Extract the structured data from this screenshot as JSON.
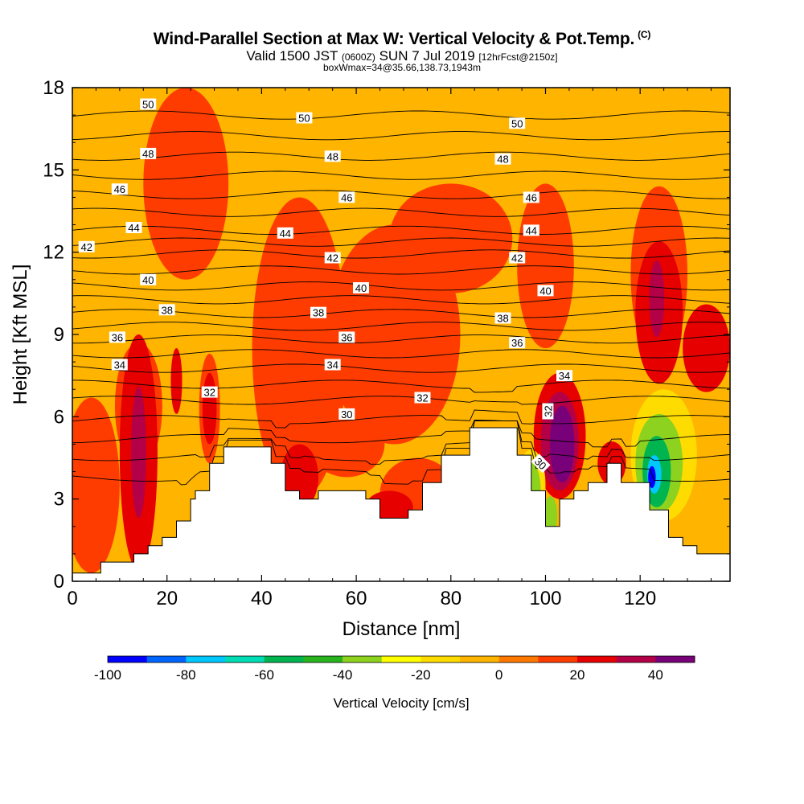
{
  "title": {
    "main": "Wind-Parallel Section at Max W: Vertical Velocity & Pot.Temp.",
    "copyright": "(C)",
    "valid_prefix": "Valid 1500 JST",
    "valid_utc": "(0600Z)",
    "valid_date": "SUN 7 Jul 2019",
    "forecast": "[12hrFcst@2150z]",
    "box": "boxWmax=34@35.66,138.73,1943m"
  },
  "colors": {
    "background_field": "#ffb400",
    "terrain": "#ffffff",
    "isentrope": "#000000"
  },
  "chart_data": {
    "type": "heatmap",
    "xlabel": "Distance [nm]",
    "ylabel": "Height [Kft MSL]",
    "xlim": [
      0,
      139
    ],
    "ylim": [
      0,
      18
    ],
    "xticks": [
      0,
      20,
      40,
      60,
      80,
      100,
      120
    ],
    "yticks": [
      0,
      3,
      6,
      9,
      12,
      15,
      18
    ],
    "colorbar": {
      "label": "Vertical Velocity [cm/s]",
      "range": [
        -100,
        50
      ],
      "step": 10,
      "tick_values": [
        -100,
        -80,
        -60,
        -40,
        -20,
        0,
        20,
        40
      ],
      "tick_labels": [
        "-100",
        "-80",
        "-60",
        "-40",
        "-20",
        "0",
        "20",
        "40"
      ],
      "colors": [
        "#0000ff",
        "#0064ff",
        "#00c8ff",
        "#00dcb4",
        "#00b450",
        "#28b41e",
        "#8cd21e",
        "#ffff00",
        "#ffdc00",
        "#ffb400",
        "#ff7800",
        "#ff3c00",
        "#e60000",
        "#b40046",
        "#780078"
      ]
    },
    "terrain_profile": {
      "x": [
        0,
        6,
        6,
        12,
        12,
        13,
        13,
        16,
        16,
        19,
        19,
        22,
        22,
        25,
        25,
        26,
        26,
        29,
        29,
        32,
        32,
        42,
        42,
        45,
        45,
        48,
        48,
        52,
        52,
        62,
        62,
        65,
        65,
        71,
        71,
        74,
        74,
        78,
        78,
        84,
        84,
        94,
        94,
        97,
        97,
        100,
        100,
        103,
        103,
        106,
        106,
        109,
        109,
        113,
        113,
        116,
        116,
        122,
        122,
        126,
        126,
        129,
        129,
        132,
        132,
        135,
        135,
        139
      ],
      "y": [
        0.3,
        0.3,
        0.7,
        0.7,
        0.7,
        0.7,
        1.0,
        1.0,
        1.3,
        1.3,
        1.6,
        1.6,
        2.2,
        2.2,
        3.0,
        3.0,
        3.3,
        3.3,
        4.3,
        4.3,
        4.9,
        4.9,
        4.3,
        4.3,
        3.3,
        3.3,
        3.0,
        3.0,
        3.3,
        3.3,
        3.0,
        3.0,
        2.3,
        2.3,
        2.6,
        2.6,
        3.6,
        3.6,
        4.6,
        4.6,
        5.6,
        5.6,
        4.6,
        4.6,
        3.3,
        3.3,
        2.0,
        2.0,
        3.0,
        3.0,
        3.3,
        3.3,
        3.6,
        3.6,
        4.3,
        4.3,
        3.6,
        3.6,
        2.6,
        2.6,
        1.6,
        1.6,
        1.3,
        1.3,
        1.0,
        1.0,
        1.0,
        1.0
      ]
    },
    "velocity_cells": [
      {
        "x": 14,
        "y": 6.4,
        "rx": 5,
        "ry": 2.3,
        "w": 10
      },
      {
        "x": 14,
        "y": 4.7,
        "rx": 4,
        "ry": 4.3,
        "w": 20
      },
      {
        "x": 14,
        "y": 4.7,
        "rx": 1.6,
        "ry": 2.4,
        "w": 30
      },
      {
        "x": 4,
        "y": 3.5,
        "rx": 6,
        "ry": 3.2,
        "w": 10
      },
      {
        "x": 29,
        "y": 6.3,
        "rx": 2.2,
        "ry": 2.0,
        "w": 10
      },
      {
        "x": 29,
        "y": 6.3,
        "rx": 1.5,
        "ry": 1.3,
        "w": 20
      },
      {
        "x": 22,
        "y": 7.3,
        "rx": 1.2,
        "ry": 1.2,
        "w": 20
      },
      {
        "x": 24,
        "y": 14.5,
        "rx": 9,
        "ry": 3.5,
        "w": 10
      },
      {
        "x": 48,
        "y": 8.5,
        "rx": 10,
        "ry": 5.5,
        "w": 10
      },
      {
        "x": 68,
        "y": 9.0,
        "rx": 14,
        "ry": 4.0,
        "w": 10
      },
      {
        "x": 80,
        "y": 12.5,
        "rx": 13,
        "ry": 2.0,
        "w": 10
      },
      {
        "x": 58,
        "y": 5.0,
        "rx": 8,
        "ry": 1.2,
        "w": 10
      },
      {
        "x": 73,
        "y": 3.2,
        "rx": 8,
        "ry": 1.3,
        "w": 10
      },
      {
        "x": 67,
        "y": 2.7,
        "rx": 5,
        "ry": 0.6,
        "w": 20
      },
      {
        "x": 48,
        "y": 3.8,
        "rx": 4,
        "ry": 1.2,
        "w": 20
      },
      {
        "x": 100,
        "y": 11.5,
        "rx": 6,
        "ry": 3.0,
        "w": 10
      },
      {
        "x": 103,
        "y": 5.3,
        "rx": 5.5,
        "ry": 2.3,
        "w": 20
      },
      {
        "x": 103,
        "y": 5.1,
        "rx": 4.0,
        "ry": 1.8,
        "w": 30
      },
      {
        "x": 103.5,
        "y": 5.0,
        "rx": 2.6,
        "ry": 1.4,
        "w": 40
      },
      {
        "x": 104,
        "y": 4.9,
        "rx": 1.4,
        "ry": 1.0,
        "w": 50
      },
      {
        "x": 114,
        "y": 4.3,
        "rx": 3.0,
        "ry": 0.8,
        "w": 20
      },
      {
        "x": 124,
        "y": 11.2,
        "rx": 6,
        "ry": 3.2,
        "w": 10
      },
      {
        "x": 124,
        "y": 9.8,
        "rx": 5,
        "ry": 2.6,
        "w": 20
      },
      {
        "x": 123.5,
        "y": 10.3,
        "rx": 1.6,
        "ry": 1.4,
        "w": 30
      },
      {
        "x": 134,
        "y": 8.5,
        "rx": 5,
        "ry": 1.6,
        "w": 20
      },
      {
        "x": 97,
        "y": 3.5,
        "rx": 3.0,
        "ry": 1.3,
        "w": -20
      },
      {
        "x": 97,
        "y": 3.3,
        "rx": 2.0,
        "ry": 1.0,
        "w": -40
      },
      {
        "x": 101,
        "y": 2.4,
        "rx": 1.5,
        "ry": 0.7,
        "w": -40
      },
      {
        "x": 125,
        "y": 4.6,
        "rx": 7,
        "ry": 2.4,
        "w": -20
      },
      {
        "x": 124,
        "y": 4.3,
        "rx": 5,
        "ry": 1.8,
        "w": -40
      },
      {
        "x": 123.5,
        "y": 4.0,
        "rx": 3.0,
        "ry": 1.3,
        "w": -60
      },
      {
        "x": 123,
        "y": 3.9,
        "rx": 1.5,
        "ry": 0.7,
        "w": -80
      },
      {
        "x": 122.5,
        "y": 3.8,
        "rx": 0.8,
        "ry": 0.4,
        "w": -100
      }
    ],
    "isentrope_labels": [
      {
        "text": "50",
        "x": 16,
        "y": 17.4
      },
      {
        "text": "50",
        "x": 49,
        "y": 16.9
      },
      {
        "text": "50",
        "x": 94,
        "y": 16.7
      },
      {
        "text": "48",
        "x": 16,
        "y": 15.6
      },
      {
        "text": "48",
        "x": 55,
        "y": 15.5
      },
      {
        "text": "48",
        "x": 91,
        "y": 15.4
      },
      {
        "text": "46",
        "x": 10,
        "y": 14.3
      },
      {
        "text": "46",
        "x": 58,
        "y": 14.0
      },
      {
        "text": "46",
        "x": 97,
        "y": 14.0
      },
      {
        "text": "44",
        "x": 13,
        "y": 12.9
      },
      {
        "text": "44",
        "x": 45,
        "y": 12.7
      },
      {
        "text": "44",
        "x": 97,
        "y": 12.8
      },
      {
        "text": "42",
        "x": 3,
        "y": 12.2
      },
      {
        "text": "42",
        "x": 55,
        "y": 11.8
      },
      {
        "text": "42",
        "x": 94,
        "y": 11.8
      },
      {
        "text": "40",
        "x": 16,
        "y": 11.0
      },
      {
        "text": "40",
        "x": 61,
        "y": 10.7
      },
      {
        "text": "40",
        "x": 100,
        "y": 10.6
      },
      {
        "text": "38",
        "x": 20,
        "y": 9.9
      },
      {
        "text": "38",
        "x": 52,
        "y": 9.8
      },
      {
        "text": "38",
        "x": 91,
        "y": 9.6
      },
      {
        "text": "36",
        "x": 9.5,
        "y": 8.9
      },
      {
        "text": "36",
        "x": 58,
        "y": 8.9
      },
      {
        "text": "36",
        "x": 94,
        "y": 8.7
      },
      {
        "text": "34",
        "x": 10,
        "y": 7.9
      },
      {
        "text": "34",
        "x": 55,
        "y": 7.9
      },
      {
        "text": "34",
        "x": 104,
        "y": 7.5
      },
      {
        "text": "32",
        "x": 29,
        "y": 6.9
      },
      {
        "text": "32",
        "x": 74,
        "y": 6.7
      },
      {
        "text": "32",
        "x": 100.5,
        "y": 6.2,
        "rotate": -90
      },
      {
        "text": "30",
        "x": 58,
        "y": 6.1
      },
      {
        "text": "30",
        "x": 99,
        "y": 4.3,
        "rotate": 45
      }
    ]
  }
}
